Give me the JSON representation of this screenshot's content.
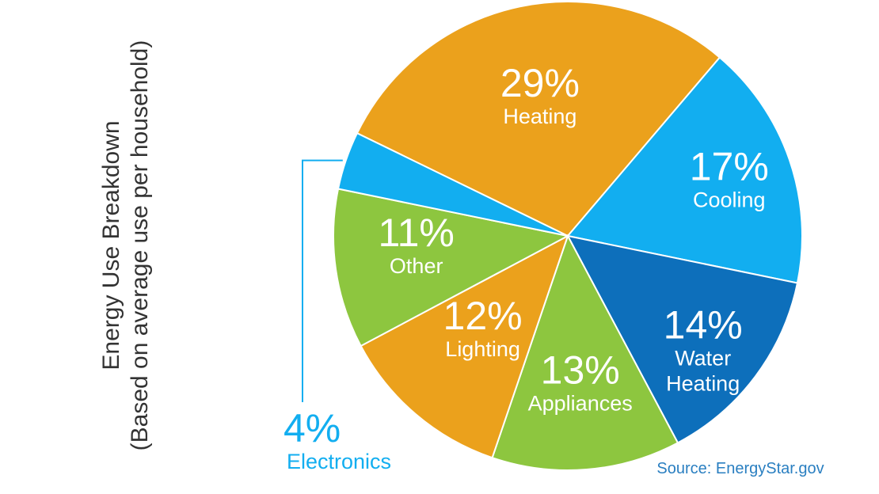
{
  "chart_data": {
    "type": "pie",
    "title": "Energy Use Breakdown",
    "subtitle": "(Based on average use per household)",
    "source": "Source: EnergyStar.gov",
    "slices": [
      {
        "label": "Heating",
        "value": 29,
        "value_text": "29%",
        "color": "#eba11c"
      },
      {
        "label": "Cooling",
        "value": 17,
        "value_text": "17%",
        "color": "#12aef0"
      },
      {
        "label": "Water Heating",
        "label_lines": [
          "Water",
          "Heating"
        ],
        "value": 14,
        "value_text": "14%",
        "color": "#0d6fbb"
      },
      {
        "label": "Appliances",
        "value": 13,
        "value_text": "13%",
        "color": "#8dc63f"
      },
      {
        "label": "Lighting",
        "value": 12,
        "value_text": "12%",
        "color": "#eba11c"
      },
      {
        "label": "Other",
        "value": 11,
        "value_text": "11%",
        "color": "#8dc63f"
      },
      {
        "label": "Electronics",
        "value": 4,
        "value_text": "4%",
        "color": "#12aef0"
      }
    ],
    "callout_color": "#12aef0"
  }
}
